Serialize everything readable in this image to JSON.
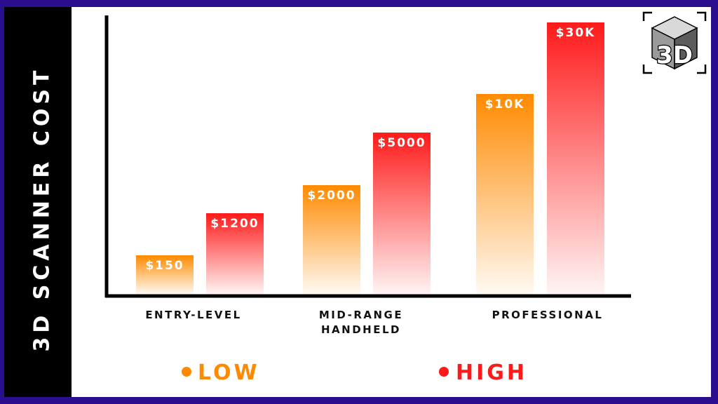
{
  "chart_data": {
    "type": "bar",
    "title": "3D SCANNER COST",
    "categories": [
      [
        "ENTRY-LEVEL"
      ],
      [
        "MID-RANGE",
        "HANDHELD"
      ],
      [
        "PROFESSIONAL"
      ]
    ],
    "series": [
      {
        "name": "LOW",
        "color": "#ff8a00",
        "values": [
          150,
          2000,
          10000
        ],
        "labels": [
          "$150",
          "$2000",
          "$10K"
        ]
      },
      {
        "name": "HIGH",
        "color": "#ff1a1a",
        "values": [
          1200,
          5000,
          30000
        ],
        "labels": [
          "$1200",
          "$5000",
          "$30K"
        ]
      }
    ],
    "legend": "bottom",
    "grid": false
  },
  "logo": {
    "text": "3D",
    "icon": "cube-icon"
  }
}
